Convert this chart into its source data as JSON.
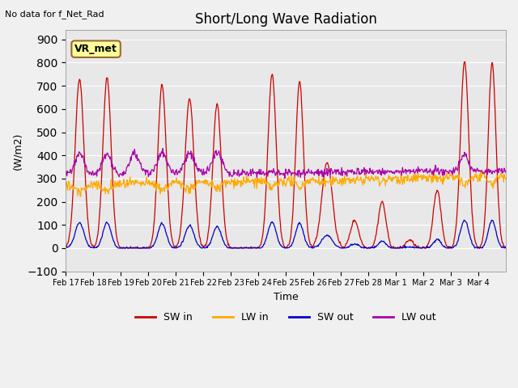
{
  "title": "Short/Long Wave Radiation",
  "subtitle": "No data for f_Net_Rad",
  "ylabel": "(W/m2)",
  "xlabel": "Time",
  "ylim": [
    -100,
    940
  ],
  "yticks": [
    -100,
    0,
    100,
    200,
    300,
    400,
    500,
    600,
    700,
    800,
    900
  ],
  "xtick_labels": [
    "Feb 17",
    "Feb 18",
    "Feb 19",
    "Feb 20",
    "Feb 21",
    "Feb 22",
    "Feb 23",
    "Feb 24",
    "Feb 25",
    "Feb 26",
    "Feb 27",
    "Feb 28",
    "Mar 1",
    "Mar 2",
    "Mar 3",
    "Mar 4"
  ],
  "colors": {
    "SW_in": "#cc0000",
    "LW_in": "#ffaa00",
    "SW_out": "#0000cc",
    "LW_out": "#aa00aa"
  },
  "box_label": "VR_met",
  "background_color": "#e8e8e8",
  "n_days": 16,
  "points_per_day": 48
}
